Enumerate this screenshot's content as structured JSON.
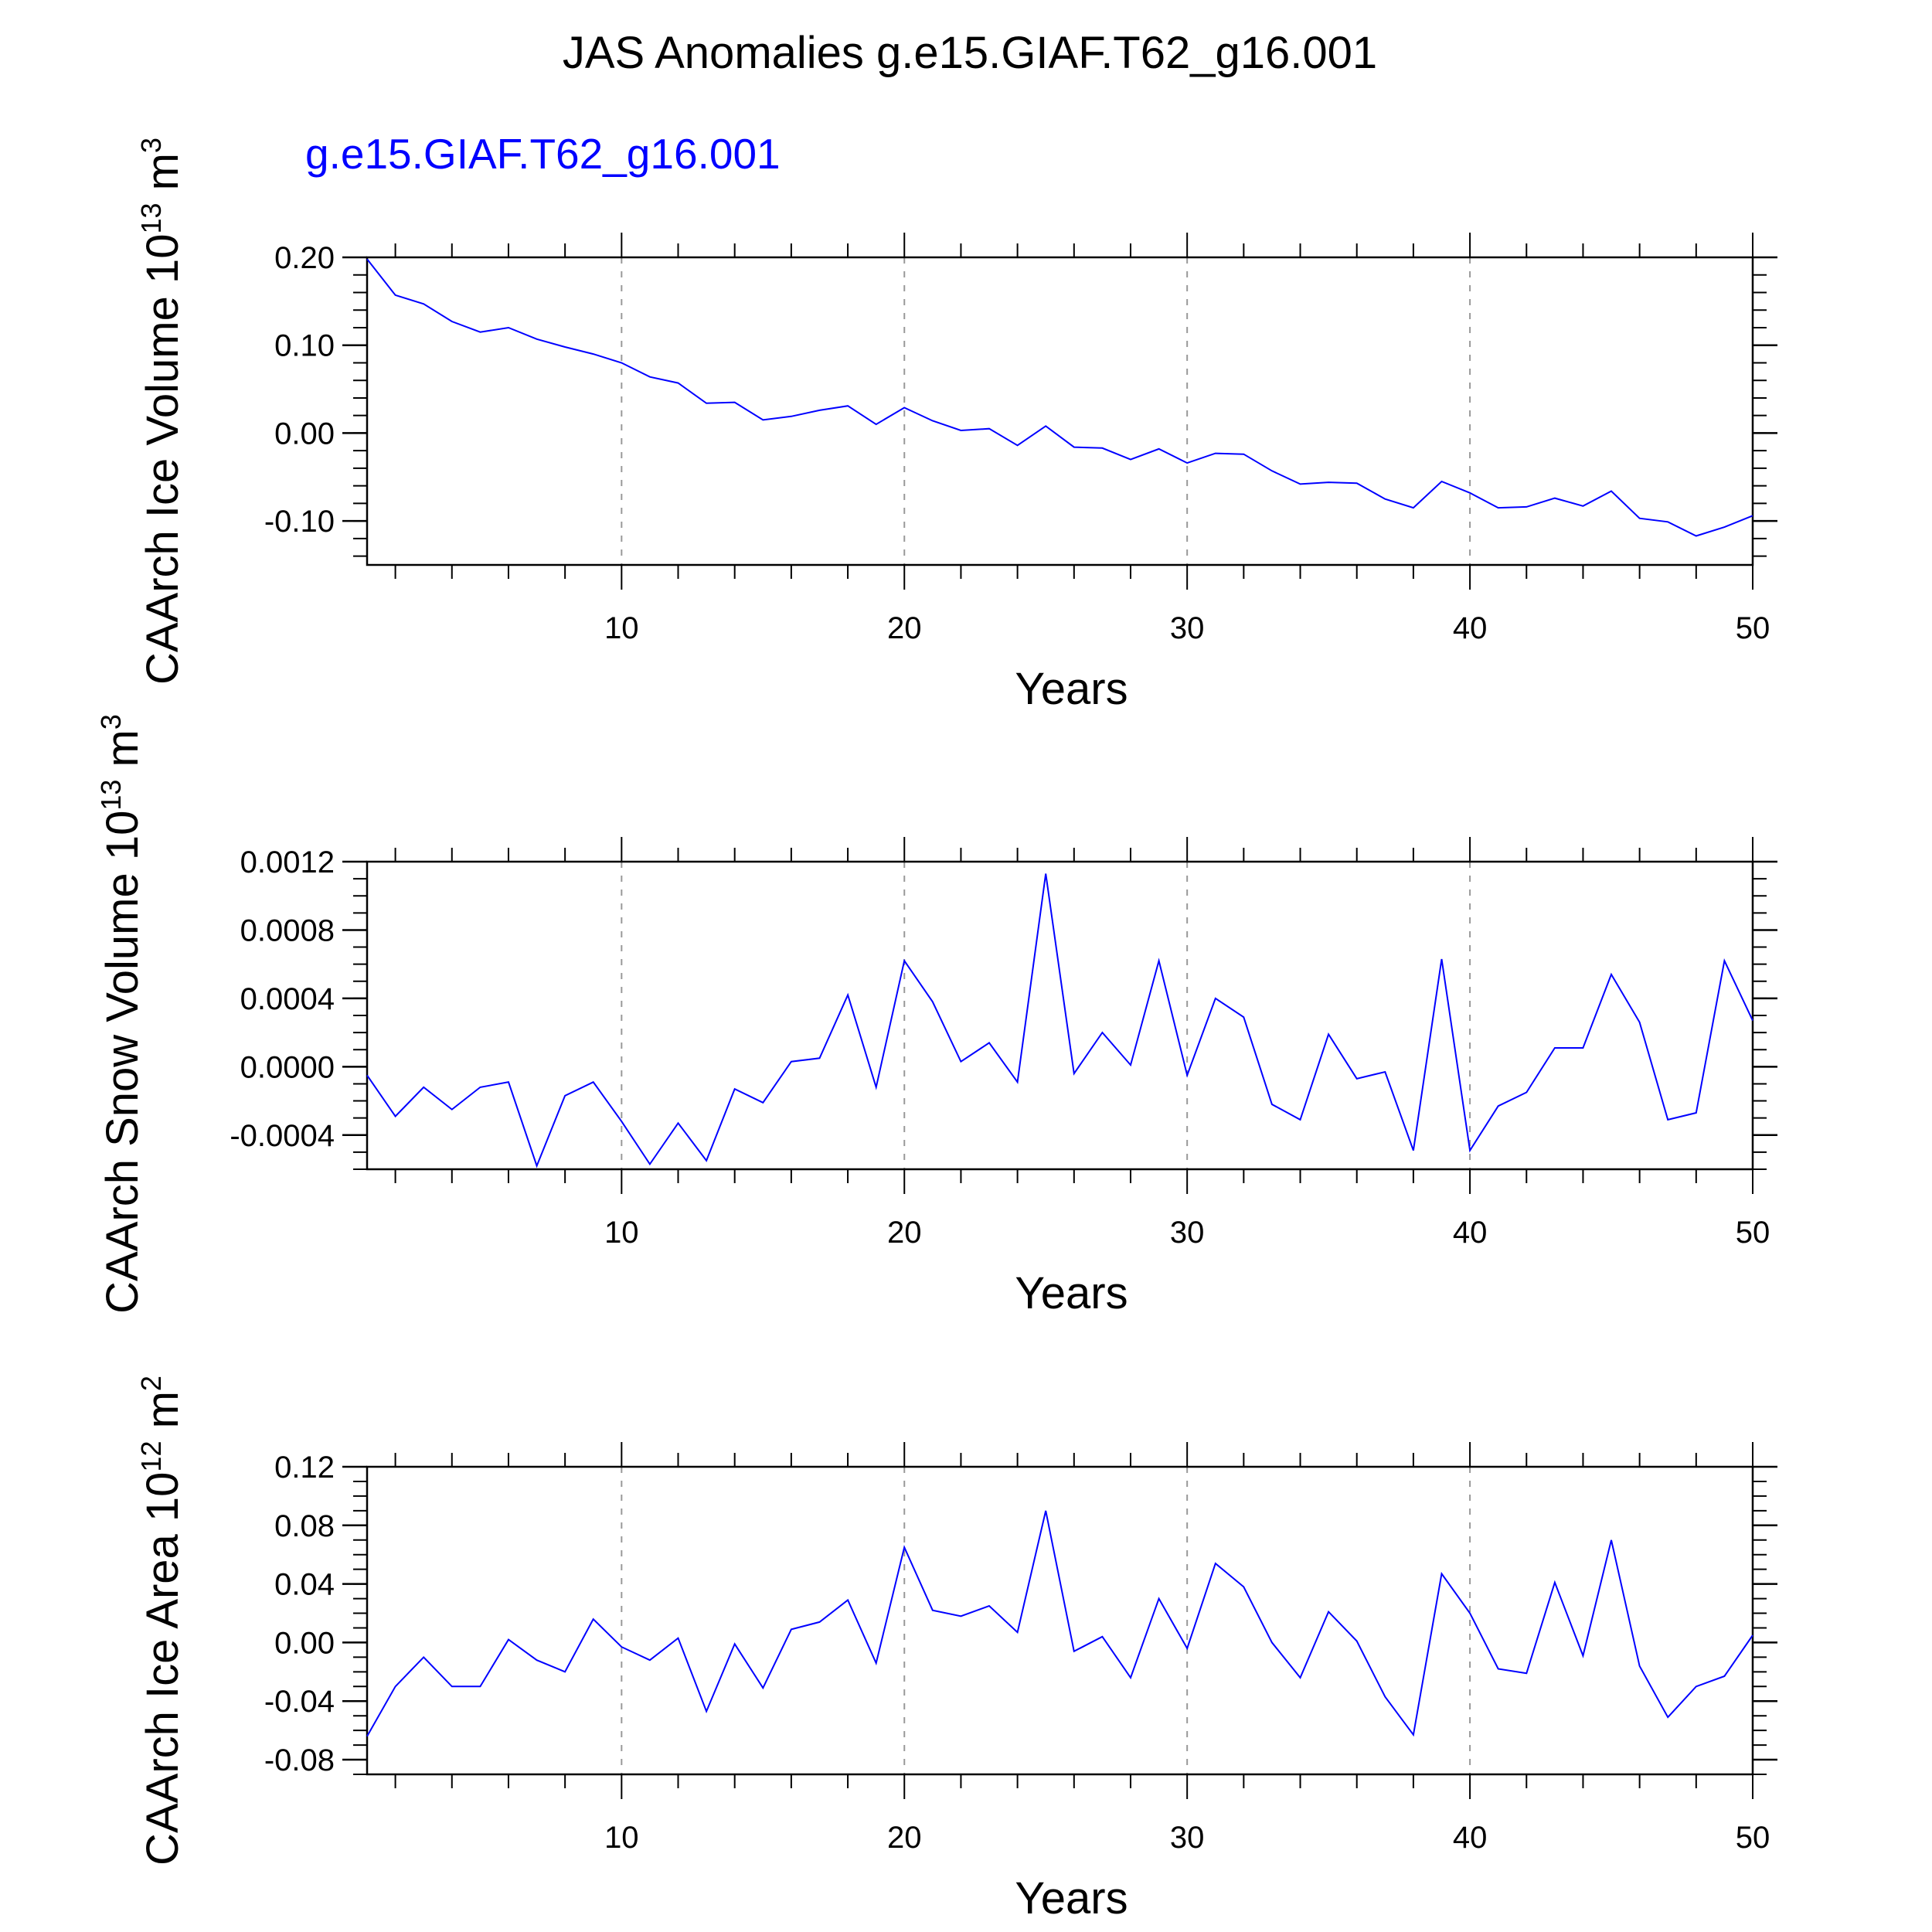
{
  "title": "JAS Anomalies g.e15.GIAF.T62_g16.001",
  "colors": {
    "series": "#0000ff",
    "text": "#000000",
    "grid": "#999999",
    "axis": "#000000"
  },
  "chart_data": [
    {
      "type": "line",
      "legend": "g.e15.GIAF.T62_g16.001",
      "ylabel": "CAArch Ice Volume",
      "ylabel_unit_base": "10",
      "ylabel_unit_exp": "13",
      "ylabel_unit_tail": "m",
      "ylabel_unit_tail_exp": "3",
      "xlabel": "Years",
      "xlim": [
        1,
        50
      ],
      "ylim": [
        -0.15,
        0.2
      ],
      "xticks": [
        10,
        20,
        30,
        40,
        50
      ],
      "xtick_labels": [
        "10",
        "20",
        "30",
        "40",
        "50"
      ],
      "yticks": [
        -0.1,
        0.0,
        0.1,
        0.2
      ],
      "ytick_labels": [
        "-0.10",
        "0.00",
        "0.10",
        "0.20"
      ],
      "y_minor_step": 0.02,
      "grid_x": [
        10,
        20,
        30,
        40
      ],
      "x": [
        1,
        2,
        3,
        4,
        5,
        6,
        7,
        8,
        9,
        10,
        11,
        12,
        13,
        14,
        15,
        16,
        17,
        18,
        19,
        20,
        21,
        22,
        23,
        24,
        25,
        26,
        27,
        28,
        29,
        30,
        31,
        32,
        33,
        34,
        35,
        36,
        37,
        38,
        39,
        40,
        41,
        42,
        43,
        44,
        45,
        46,
        47,
        48,
        49,
        50
      ],
      "y": [
        0.198,
        0.157,
        0.147,
        0.127,
        0.115,
        0.12,
        0.107,
        0.098,
        0.09,
        0.08,
        0.064,
        0.057,
        0.034,
        0.035,
        0.015,
        0.019,
        0.026,
        0.031,
        0.01,
        0.029,
        0.014,
        0.003,
        0.005,
        -0.014,
        0.008,
        -0.016,
        -0.017,
        -0.03,
        -0.018,
        -0.034,
        -0.023,
        -0.024,
        -0.043,
        -0.058,
        -0.056,
        -0.057,
        -0.075,
        -0.085,
        -0.055,
        -0.068,
        -0.085,
        -0.084,
        -0.074,
        -0.083,
        -0.066,
        -0.097,
        -0.101,
        -0.117,
        -0.107,
        -0.094
      ]
    },
    {
      "type": "line",
      "legend": "",
      "ylabel": "CAArch Snow Volume",
      "ylabel_unit_base": "10",
      "ylabel_unit_exp": "13",
      "ylabel_unit_tail": "m",
      "ylabel_unit_tail_exp": "3",
      "xlabel": "Years",
      "xlim": [
        1,
        50
      ],
      "ylim": [
        -0.0006,
        0.0012
      ],
      "xticks": [
        10,
        20,
        30,
        40,
        50
      ],
      "xtick_labels": [
        "10",
        "20",
        "30",
        "40",
        "50"
      ],
      "yticks": [
        -0.0004,
        0.0,
        0.0004,
        0.0008,
        0.0012
      ],
      "ytick_labels": [
        "-0.0004",
        "0.0000",
        "0.0004",
        "0.0008",
        "0.0012"
      ],
      "y_minor_step": 0.0001,
      "grid_x": [
        10,
        20,
        30,
        40
      ],
      "x": [
        1,
        2,
        3,
        4,
        5,
        6,
        7,
        8,
        9,
        10,
        11,
        12,
        13,
        14,
        15,
        16,
        17,
        18,
        19,
        20,
        21,
        22,
        23,
        24,
        25,
        26,
        27,
        28,
        29,
        30,
        31,
        32,
        33,
        34,
        35,
        36,
        37,
        38,
        39,
        40,
        41,
        42,
        43,
        44,
        45,
        46,
        47,
        48,
        49,
        50
      ],
      "y": [
        -5e-05,
        -0.00029,
        -0.00012,
        -0.00025,
        -0.00012,
        -9e-05,
        -0.00058,
        -0.00017,
        -9e-05,
        -0.00032,
        -0.00057,
        -0.00033,
        -0.00055,
        -0.00013,
        -0.00021,
        3e-05,
        5e-05,
        0.00042,
        -0.00012,
        0.00062,
        0.00038,
        3e-05,
        0.00014,
        -9e-05,
        0.00113,
        -4e-05,
        0.0002,
        1e-05,
        0.00062,
        -5e-05,
        0.0004,
        0.00029,
        -0.00022,
        -0.00031,
        0.00019,
        -7e-05,
        -3e-05,
        -0.00049,
        0.00063,
        -0.00049,
        -0.00023,
        -0.00015,
        0.00011,
        0.00011,
        0.00054,
        0.00026,
        -0.00031,
        -0.00027,
        0.00062,
        0.00027
      ]
    },
    {
      "type": "line",
      "legend": "",
      "ylabel": "CAArch Ice Area",
      "ylabel_unit_base": "10",
      "ylabel_unit_exp": "12",
      "ylabel_unit_tail": "m",
      "ylabel_unit_tail_exp": "2",
      "xlabel": "Years",
      "xlim": [
        1,
        50
      ],
      "ylim": [
        -0.09,
        0.12
      ],
      "xticks": [
        10,
        20,
        30,
        40,
        50
      ],
      "xtick_labels": [
        "10",
        "20",
        "30",
        "40",
        "50"
      ],
      "yticks": [
        -0.08,
        -0.04,
        0.0,
        0.04,
        0.08,
        0.12
      ],
      "ytick_labels": [
        "-0.08",
        "-0.04",
        "0.00",
        "0.04",
        "0.08",
        "0.12"
      ],
      "y_minor_step": 0.01,
      "grid_x": [
        10,
        20,
        30,
        40
      ],
      "x": [
        1,
        2,
        3,
        4,
        5,
        6,
        7,
        8,
        9,
        10,
        11,
        12,
        13,
        14,
        15,
        16,
        17,
        18,
        19,
        20,
        21,
        22,
        23,
        24,
        25,
        26,
        27,
        28,
        29,
        30,
        31,
        32,
        33,
        34,
        35,
        36,
        37,
        38,
        39,
        40,
        41,
        42,
        43,
        44,
        45,
        46,
        47,
        48,
        49,
        50
      ],
      "y": [
        -0.064,
        -0.03,
        -0.01,
        -0.03,
        -0.03,
        0.002,
        -0.012,
        -0.02,
        0.016,
        -0.003,
        -0.012,
        0.003,
        -0.047,
        -0.001,
        -0.031,
        0.009,
        0.014,
        0.029,
        -0.014,
        0.065,
        0.022,
        0.018,
        0.025,
        0.007,
        0.09,
        -0.006,
        0.004,
        -0.024,
        0.03,
        -0.004,
        0.054,
        0.038,
        0.0,
        -0.024,
        0.021,
        0.001,
        -0.037,
        -0.063,
        0.047,
        0.02,
        -0.018,
        -0.021,
        0.041,
        -0.009,
        0.07,
        -0.016,
        -0.051,
        -0.03,
        -0.023,
        0.005
      ]
    }
  ]
}
